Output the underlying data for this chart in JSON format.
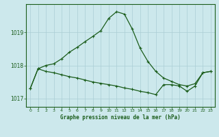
{
  "title": "Graphe pression niveau de la mer (hPa)",
  "background_color": "#cce8ec",
  "grid_color": "#aacdd4",
  "line_color": "#1a5c1a",
  "xlim": [
    -0.5,
    23.5
  ],
  "ylim": [
    1016.75,
    1019.85
  ],
  "yticks": [
    1017,
    1018,
    1019
  ],
  "xticks": [
    0,
    1,
    2,
    3,
    4,
    5,
    6,
    7,
    8,
    9,
    10,
    11,
    12,
    13,
    14,
    15,
    16,
    17,
    18,
    19,
    20,
    21,
    22,
    23
  ],
  "series1_x": [
    0,
    1,
    2,
    3,
    4,
    5,
    6,
    7,
    8,
    9,
    10,
    11,
    12,
    13,
    14,
    15,
    16,
    17,
    18,
    19,
    20,
    21,
    22,
    23
  ],
  "series1_y": [
    1017.3,
    1017.9,
    1018.0,
    1018.05,
    1018.2,
    1018.4,
    1018.55,
    1018.72,
    1018.88,
    1019.05,
    1019.42,
    1019.62,
    1019.55,
    1019.1,
    1018.52,
    1018.12,
    1017.82,
    1017.62,
    1017.52,
    1017.42,
    1017.38,
    1017.45,
    1017.78,
    1017.82
  ],
  "series2_x": [
    0,
    1,
    2,
    3,
    4,
    5,
    6,
    7,
    8,
    9,
    10,
    11,
    12,
    13,
    14,
    15,
    16,
    17,
    18,
    19,
    20,
    21,
    22,
    23
  ],
  "series2_y": [
    1017.3,
    1017.9,
    1017.82,
    1017.78,
    1017.72,
    1017.66,
    1017.62,
    1017.56,
    1017.5,
    1017.46,
    1017.42,
    1017.38,
    1017.32,
    1017.28,
    1017.22,
    1017.18,
    1017.12,
    1017.42,
    1017.42,
    1017.38,
    1017.22,
    1017.38,
    1017.78,
    1017.82
  ]
}
